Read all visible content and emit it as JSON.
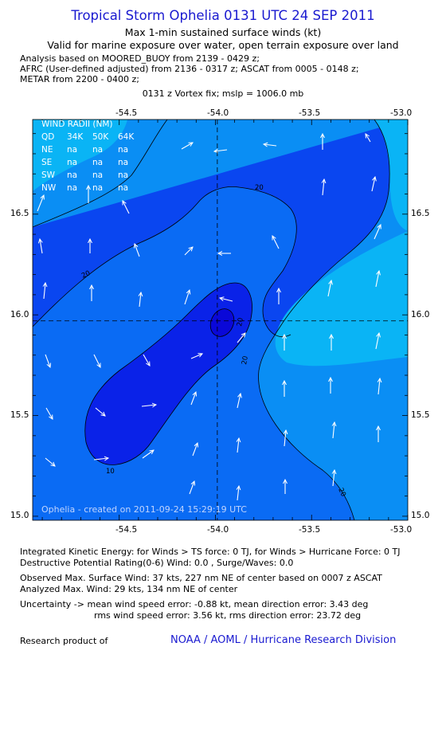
{
  "header": {
    "title": "Tropical Storm Ophelia 0131 UTC 24 SEP 2011",
    "subtitle": "Max 1-min sustained surface winds (kt)",
    "valid_line": "Valid for marine exposure over water, open terrain exposure over land",
    "analysis_lines": [
      "Analysis based on MOORED_BUOY from 2139 - 0429 z;",
      "AFRC (User-defined adjusted) from 2136 - 0317 z; ASCAT from 0005 - 0148 z;",
      "METAR from 2200 - 0400 z;"
    ],
    "vortex_fix": "0131 z Vortex fix; mslp = 1006.0 mb"
  },
  "map": {
    "lon_range": [
      -54.95,
      -53.0
    ],
    "lat_range": [
      14.98,
      16.97
    ],
    "top_lon_ticks": [
      "-54.5",
      "-54.0",
      "-53.5",
      "-53.0"
    ],
    "bottom_lon_ticks": [
      "-54.5",
      "-54.0",
      "-53.5",
      "-53.0"
    ],
    "lat_ticks": [
      "16.5",
      "16.0",
      "15.5",
      "15.0"
    ],
    "center": {
      "lon": -53.99,
      "lat": 15.97
    },
    "contour_labels": [
      "20",
      "20",
      "10",
      "20",
      "20",
      "20"
    ],
    "credit": "Ophelia - created on 2011-09-24 15:29:19 UTC",
    "wind_radii": {
      "title": "WIND RADII (NM)",
      "columns": [
        "QD",
        "34K",
        "50K",
        "64K"
      ],
      "rows": [
        [
          "NE",
          "na",
          "na",
          "na"
        ],
        [
          "SE",
          "na",
          "na",
          "na"
        ],
        [
          "SW",
          "na",
          "na",
          "na"
        ],
        [
          "NW",
          "na",
          "na",
          "na"
        ]
      ]
    },
    "colors": {
      "lt": "#0ab4f5",
      "md": "#0a8ef4",
      "bl": "#0a6bf4",
      "dk": "#0a46f0",
      "dd": "#0a22e8"
    }
  },
  "footer": {
    "ike": "Integrated Kinetic Energy:  for Winds > TS force: 0 TJ,  for Winds > Hurricane Force: 0 TJ",
    "dpr": "Destructive Potential Rating(0-6)   Wind: 0.0 , Surge/Waves: 0.0",
    "obs_max": "Observed Max. Surface Wind: 37 kts, 227 nm NE of center based on 0007 z ASCAT",
    "analyzed_max": "Analyzed Max. Wind: 29 kts, 134 nm NE of center",
    "uncertainty1": "Uncertainty -> mean wind speed error:  -0.88 kt,   mean direction error: 3.43 deg",
    "uncertainty2": "rms wind speed error:  3.56 kt,   rms direction error: 23.72 deg",
    "research_label": "Research product of",
    "org": "NOAA / AOML / Hurricane Research Division"
  }
}
